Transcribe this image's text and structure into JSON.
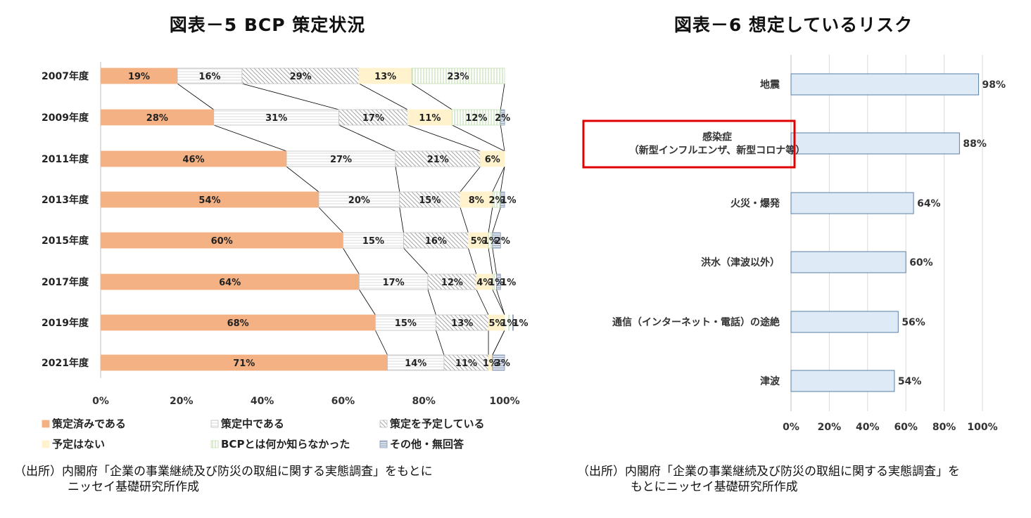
{
  "chart_data": [
    {
      "type": "bar",
      "orientation": "horizontal",
      "stacked": true,
      "title": "図表－5 BCP 策定状況",
      "categories": [
        "2007年度",
        "2009年度",
        "2011年度",
        "2013年度",
        "2015年度",
        "2017年度",
        "2019年度",
        "2021年度"
      ],
      "series": [
        {
          "name": "策定済みである",
          "values": [
            19,
            28,
            46,
            54,
            60,
            64,
            68,
            71
          ],
          "labels": [
            "19%",
            "28%",
            "46%",
            "54%",
            "60%",
            "64%",
            "68%",
            "71%"
          ],
          "color": "#f4b183"
        },
        {
          "name": "策定中である",
          "values": [
            16,
            31,
            27,
            20,
            15,
            17,
            15,
            14
          ],
          "labels": [
            "16%",
            "31%",
            "27%",
            "20%",
            "15%",
            "17%",
            "15%",
            "14%"
          ],
          "color": "#ffffff"
        },
        {
          "name": "策定を予定している",
          "values": [
            29,
            17,
            21,
            15,
            16,
            12,
            13,
            11
          ],
          "labels": [
            "29%",
            "17%",
            "21%",
            "15%",
            "16%",
            "12%",
            "13%",
            "11%"
          ],
          "color": "#d0d0d0"
        },
        {
          "name": "予定はない",
          "values": [
            13,
            11,
            6,
            8,
            5,
            4,
            5,
            1
          ],
          "labels": [
            "13%",
            "11%",
            "6%",
            "8%",
            "5%",
            "4%",
            "5%",
            "1%"
          ],
          "color": "#fff2cc"
        },
        {
          "name": "BCPとは何か知らなかった",
          "values": [
            23,
            12,
            0,
            2,
            1,
            1,
            1,
            0
          ],
          "labels": [
            "23%",
            "12%",
            "",
            "2%",
            "1%",
            "1%",
            "1%",
            ""
          ],
          "color": "#c5e0b4"
        },
        {
          "name": "その他・無回答",
          "values": [
            0,
            2,
            0,
            1,
            2,
            1,
            1,
            3
          ],
          "labels": [
            "",
            "2%",
            "",
            "1%",
            "2%",
            "1%",
            "1%",
            "3%"
          ],
          "color": "#8497b0"
        }
      ],
      "xlim": [
        0,
        100
      ],
      "xticks": [
        "0%",
        "20%",
        "40%",
        "60%",
        "80%",
        "100%"
      ],
      "grid": false,
      "legend_position": "bottom"
    },
    {
      "type": "bar",
      "orientation": "horizontal",
      "title": "図表－6 想定しているリスク",
      "categories": [
        "地震",
        "感染症\n（新型インフルエンザ、新型コロナ等）",
        "火災・爆発",
        "洪水（津波以外）",
        "通信（インターネット・電話）の途絶",
        "津波"
      ],
      "values": [
        98,
        88,
        64,
        60,
        56,
        54
      ],
      "labels": [
        "98%",
        "88%",
        "64%",
        "60%",
        "56%",
        "54%"
      ],
      "color": "#deebf7",
      "highlight_category": "感染症\n（新型インフルエンザ、新型コロナ等）",
      "highlight_color": "#e00000",
      "xlim": [
        0,
        100
      ],
      "xticks": [
        "0%",
        "20%",
        "40%",
        "60%",
        "80%",
        "100%"
      ],
      "grid": true
    }
  ],
  "source_left": {
    "line1": "（出所）内閣府「企業の事業継続及び防災の取組に関する実態調査」をもとに",
    "line2": "ニッセイ基礎研究所作成"
  },
  "source_right": {
    "line1": "（出所）内閣府「企業の事業継続及び防災の取組に関する実態調査」を",
    "line2": "もとにニッセイ基礎研究所作成"
  }
}
